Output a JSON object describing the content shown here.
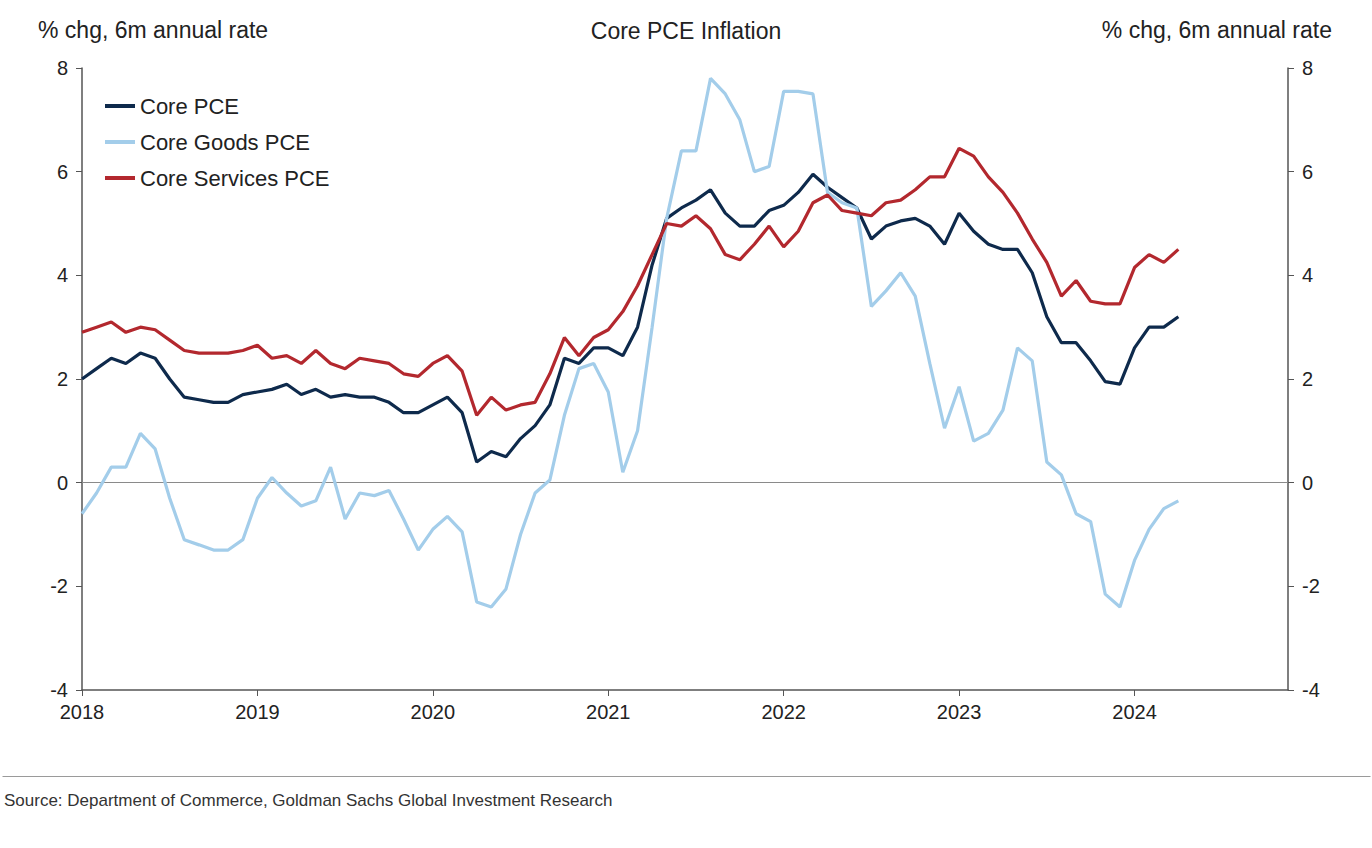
{
  "chart_data": {
    "type": "line",
    "title": "Core PCE Inflation",
    "y_label": "% chg, 6m annual rate",
    "y2_label": "% chg, 6m annual rate",
    "source": "Source: Department of Commerce, Goldman Sachs Global Investment Research",
    "x": [
      2018,
      2018.083,
      2018.167,
      2018.25,
      2018.333,
      2018.417,
      2018.5,
      2018.583,
      2018.667,
      2018.75,
      2018.833,
      2018.917,
      2019,
      2019.083,
      2019.167,
      2019.25,
      2019.333,
      2019.417,
      2019.5,
      2019.583,
      2019.667,
      2019.75,
      2019.833,
      2019.917,
      2020,
      2020.083,
      2020.167,
      2020.25,
      2020.333,
      2020.417,
      2020.5,
      2020.583,
      2020.667,
      2020.75,
      2020.833,
      2020.917,
      2021,
      2021.083,
      2021.167,
      2021.25,
      2021.333,
      2021.417,
      2021.5,
      2021.583,
      2021.667,
      2021.75,
      2021.833,
      2021.917,
      2022,
      2022.083,
      2022.167,
      2022.25,
      2022.333,
      2022.417,
      2022.5,
      2022.583,
      2022.667,
      2022.75,
      2022.833,
      2022.917,
      2023,
      2023.083,
      2023.167,
      2023.25,
      2023.333,
      2023.417,
      2023.5,
      2023.583,
      2023.667,
      2023.75,
      2023.833,
      2023.917,
      2024,
      2024.083,
      2024.167,
      2024.25
    ],
    "series": [
      {
        "name": "Core PCE",
        "color": "#0e2a4c",
        "values": [
          2.0,
          2.2,
          2.4,
          2.3,
          2.5,
          2.4,
          2.0,
          1.65,
          1.6,
          1.55,
          1.55,
          1.7,
          1.75,
          1.8,
          1.9,
          1.7,
          1.8,
          1.65,
          1.7,
          1.65,
          1.65,
          1.55,
          1.35,
          1.35,
          1.5,
          1.65,
          1.35,
          0.4,
          0.6,
          0.5,
          0.85,
          1.1,
          1.5,
          2.4,
          2.3,
          2.6,
          2.6,
          2.45,
          3.0,
          4.2,
          5.1,
          5.3,
          5.45,
          5.65,
          5.2,
          4.95,
          4.95,
          5.25,
          5.35,
          5.6,
          5.95,
          5.7,
          5.5,
          5.3,
          4.7,
          4.95,
          5.05,
          5.1,
          4.95,
          4.6,
          5.2,
          4.85,
          4.6,
          4.5,
          4.5,
          4.05,
          3.2,
          2.7,
          2.7,
          2.35,
          1.95,
          1.9,
          2.6,
          3.0,
          3.0,
          3.2
        ]
      },
      {
        "name": "Core Goods PCE",
        "color": "#a3cdea",
        "values": [
          -0.6,
          -0.2,
          0.3,
          0.3,
          0.95,
          0.65,
          -0.3,
          -1.1,
          -1.2,
          -1.3,
          -1.3,
          -1.1,
          -0.3,
          0.1,
          -0.2,
          -0.45,
          -0.35,
          0.3,
          -0.7,
          -0.2,
          -0.25,
          -0.15,
          -0.7,
          -1.3,
          -0.9,
          -0.65,
          -0.95,
          -2.3,
          -2.4,
          -2.05,
          -1.0,
          -0.2,
          0.05,
          1.3,
          2.2,
          2.3,
          1.75,
          0.2,
          1.0,
          3.0,
          5.1,
          6.4,
          6.4,
          7.8,
          7.5,
          7.0,
          6.0,
          6.1,
          7.55,
          7.55,
          7.5,
          5.6,
          5.4,
          5.3,
          3.4,
          3.7,
          4.05,
          3.6,
          2.3,
          1.05,
          1.85,
          0.8,
          0.95,
          1.4,
          2.6,
          2.35,
          0.4,
          0.15,
          -0.6,
          -0.75,
          -2.15,
          -2.4,
          -1.5,
          -0.9,
          -0.5,
          -0.35
        ]
      },
      {
        "name": "Core Services PCE",
        "color": "#b3282e",
        "values": [
          2.9,
          3.0,
          3.1,
          2.9,
          3.0,
          2.95,
          2.75,
          2.55,
          2.5,
          2.5,
          2.5,
          2.55,
          2.65,
          2.4,
          2.45,
          2.3,
          2.55,
          2.3,
          2.2,
          2.4,
          2.35,
          2.3,
          2.1,
          2.05,
          2.3,
          2.45,
          2.15,
          1.3,
          1.65,
          1.4,
          1.5,
          1.55,
          2.1,
          2.8,
          2.45,
          2.8,
          2.95,
          3.3,
          3.8,
          4.4,
          5.0,
          4.95,
          5.15,
          4.9,
          4.4,
          4.3,
          4.6,
          4.95,
          4.55,
          4.85,
          5.4,
          5.55,
          5.25,
          5.2,
          5.15,
          5.4,
          5.45,
          5.65,
          5.9,
          5.9,
          6.45,
          6.3,
          5.9,
          5.6,
          5.2,
          4.7,
          4.25,
          3.6,
          3.9,
          3.5,
          3.45,
          3.45,
          4.15,
          4.4,
          4.25,
          4.5
        ]
      }
    ],
    "xlim": [
      2018,
      2024.875
    ],
    "xticks": [
      2018,
      2019,
      2020,
      2021,
      2022,
      2023,
      2024
    ],
    "ylim": [
      -4,
      8
    ],
    "yticks": [
      -4,
      -2,
      0,
      2,
      4,
      6,
      8
    ],
    "y2lim": [
      -4,
      8
    ],
    "y2ticks": [
      -4,
      -2,
      0,
      2,
      4,
      6,
      8
    ],
    "legend": "upper left",
    "grid": false
  }
}
